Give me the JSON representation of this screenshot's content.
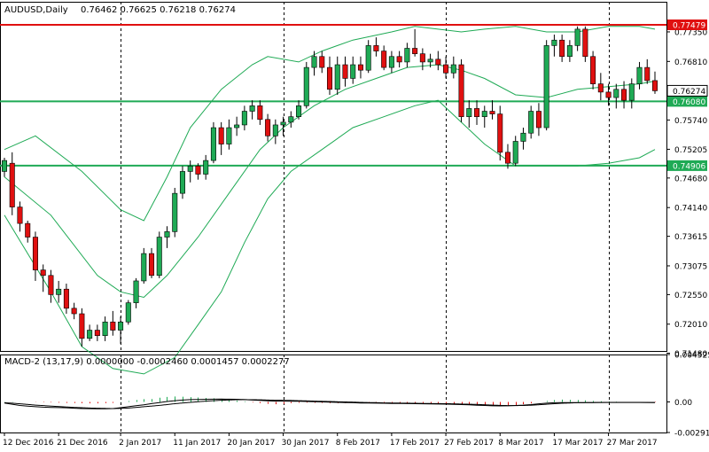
{
  "header": {
    "symbol": "AUDUSD,Daily",
    "ohlc": "0.76462 0.76625 0.76218 0.76274"
  },
  "macd": {
    "label": "MACD-2 (13,17,9) 0.0000000 -0.0002460 0.0001457 0.0002277",
    "axis_ticks": [
      "0.0045259",
      "0.00",
      "-0.0029180"
    ]
  },
  "chart_data": {
    "type": "candlestick",
    "price_axis": {
      "ylim": [
        0.7152,
        0.779
      ],
      "ticks": [
        "0.77350",
        "0.76810",
        "0.76280",
        "0.75740",
        "0.75205",
        "0.74680",
        "0.74140",
        "0.73615",
        "0.73075",
        "0.72550",
        "0.72010",
        "0.71480"
      ],
      "tick_values": [
        0.7735,
        0.7681,
        0.7628,
        0.7574,
        0.75205,
        0.7468,
        0.7414,
        0.73615,
        0.73075,
        0.7255,
        0.7201,
        0.7148
      ]
    },
    "x_labels": [
      {
        "label": "12 Dec 2016",
        "index": 0
      },
      {
        "label": "21 Dec 2016",
        "index": 7
      },
      {
        "label": "2 Jan 2017",
        "index": 15
      },
      {
        "label": "11 Jan 2017",
        "index": 22
      },
      {
        "label": "20 Jan 2017",
        "index": 29
      },
      {
        "label": "30 Jan 2017",
        "index": 36
      },
      {
        "label": "8 Feb 2017",
        "index": 43
      },
      {
        "label": "17 Feb 2017",
        "index": 50
      },
      {
        "label": "27 Feb 2017",
        "index": 57
      },
      {
        "label": "8 Mar 2017",
        "index": 64
      },
      {
        "label": "17 Mar 2017",
        "index": 71
      },
      {
        "label": "27 Mar 2017",
        "index": 78
      }
    ],
    "separators": [
      15,
      36,
      57,
      78
    ],
    "levels": [
      {
        "value": 0.77479,
        "label": "0.77479",
        "color": "#e01010"
      },
      {
        "value": 0.7608,
        "label": "0.76080",
        "color": "#1faa55"
      },
      {
        "value": 0.74906,
        "label": "0.74906",
        "color": "#1faa55"
      }
    ],
    "current_price": {
      "value": 0.76274,
      "label": "0.76274"
    },
    "candles": [
      [
        0.748,
        0.7505,
        0.747,
        0.75
      ],
      [
        0.7495,
        0.7515,
        0.74,
        0.7415
      ],
      [
        0.7415,
        0.7425,
        0.737,
        0.7385
      ],
      [
        0.7385,
        0.739,
        0.735,
        0.736
      ],
      [
        0.736,
        0.737,
        0.728,
        0.73
      ],
      [
        0.73,
        0.731,
        0.726,
        0.729
      ],
      [
        0.729,
        0.73,
        0.724,
        0.7255
      ],
      [
        0.7255,
        0.728,
        0.724,
        0.7265
      ],
      [
        0.7265,
        0.7275,
        0.722,
        0.723
      ],
      [
        0.723,
        0.724,
        0.721,
        0.722
      ],
      [
        0.722,
        0.723,
        0.716,
        0.7175
      ],
      [
        0.7175,
        0.72,
        0.717,
        0.719
      ],
      [
        0.719,
        0.72,
        0.717,
        0.718
      ],
      [
        0.718,
        0.7215,
        0.717,
        0.7205
      ],
      [
        0.7205,
        0.7225,
        0.718,
        0.719
      ],
      [
        0.719,
        0.7215,
        0.7165,
        0.7205
      ],
      [
        0.7205,
        0.7245,
        0.72,
        0.724
      ],
      [
        0.724,
        0.7285,
        0.723,
        0.728
      ],
      [
        0.728,
        0.734,
        0.7275,
        0.733
      ],
      [
        0.733,
        0.734,
        0.7285,
        0.729
      ],
      [
        0.729,
        0.737,
        0.7285,
        0.736
      ],
      [
        0.736,
        0.738,
        0.734,
        0.737
      ],
      [
        0.737,
        0.745,
        0.736,
        0.744
      ],
      [
        0.744,
        0.749,
        0.743,
        0.748
      ],
      [
        0.748,
        0.75,
        0.746,
        0.749
      ],
      [
        0.749,
        0.7495,
        0.7465,
        0.7475
      ],
      [
        0.7475,
        0.751,
        0.7465,
        0.75
      ],
      [
        0.75,
        0.757,
        0.7495,
        0.756
      ],
      [
        0.756,
        0.757,
        0.751,
        0.753
      ],
      [
        0.753,
        0.7575,
        0.752,
        0.756
      ],
      [
        0.756,
        0.758,
        0.7545,
        0.7565
      ],
      [
        0.7565,
        0.76,
        0.7555,
        0.759
      ],
      [
        0.759,
        0.761,
        0.7575,
        0.76
      ],
      [
        0.76,
        0.761,
        0.7565,
        0.7575
      ],
      [
        0.7575,
        0.7585,
        0.7535,
        0.7545
      ],
      [
        0.7545,
        0.7575,
        0.753,
        0.7565
      ],
      [
        0.7565,
        0.758,
        0.7545,
        0.757
      ],
      [
        0.757,
        0.759,
        0.756,
        0.758
      ],
      [
        0.758,
        0.761,
        0.7575,
        0.76
      ],
      [
        0.76,
        0.768,
        0.7595,
        0.767
      ],
      [
        0.767,
        0.77,
        0.7655,
        0.769
      ],
      [
        0.769,
        0.77,
        0.766,
        0.767
      ],
      [
        0.767,
        0.769,
        0.762,
        0.763
      ],
      [
        0.763,
        0.769,
        0.762,
        0.7675
      ],
      [
        0.7675,
        0.769,
        0.7635,
        0.765
      ],
      [
        0.765,
        0.769,
        0.764,
        0.7675
      ],
      [
        0.7675,
        0.769,
        0.765,
        0.7665
      ],
      [
        0.7665,
        0.772,
        0.766,
        0.771
      ],
      [
        0.771,
        0.7725,
        0.769,
        0.77
      ],
      [
        0.77,
        0.771,
        0.7665,
        0.767
      ],
      [
        0.767,
        0.77,
        0.766,
        0.769
      ],
      [
        0.769,
        0.77,
        0.767,
        0.768
      ],
      [
        0.768,
        0.7715,
        0.767,
        0.7705
      ],
      [
        0.7705,
        0.774,
        0.769,
        0.7695
      ],
      [
        0.7695,
        0.7705,
        0.7665,
        0.768
      ],
      [
        0.768,
        0.7695,
        0.767,
        0.7685
      ],
      [
        0.7685,
        0.77,
        0.7665,
        0.7675
      ],
      [
        0.7675,
        0.769,
        0.765,
        0.766
      ],
      [
        0.766,
        0.769,
        0.765,
        0.7675
      ],
      [
        0.7675,
        0.7685,
        0.757,
        0.758
      ],
      [
        0.758,
        0.761,
        0.756,
        0.7595
      ],
      [
        0.7595,
        0.761,
        0.7565,
        0.758
      ],
      [
        0.758,
        0.76,
        0.756,
        0.759
      ],
      [
        0.759,
        0.761,
        0.7575,
        0.7585
      ],
      [
        0.7585,
        0.76,
        0.75,
        0.7515
      ],
      [
        0.7515,
        0.753,
        0.7485,
        0.7495
      ],
      [
        0.7495,
        0.7545,
        0.749,
        0.7535
      ],
      [
        0.7535,
        0.756,
        0.752,
        0.755
      ],
      [
        0.755,
        0.76,
        0.754,
        0.759
      ],
      [
        0.759,
        0.7605,
        0.7545,
        0.756
      ],
      [
        0.756,
        0.772,
        0.7555,
        0.771
      ],
      [
        0.771,
        0.773,
        0.769,
        0.772
      ],
      [
        0.772,
        0.773,
        0.768,
        0.769
      ],
      [
        0.769,
        0.772,
        0.768,
        0.771
      ],
      [
        0.771,
        0.7745,
        0.77,
        0.774
      ],
      [
        0.774,
        0.7745,
        0.768,
        0.769
      ],
      [
        0.769,
        0.77,
        0.763,
        0.764
      ],
      [
        0.764,
        0.766,
        0.761,
        0.7625
      ],
      [
        0.7625,
        0.764,
        0.76,
        0.7615
      ],
      [
        0.7615,
        0.764,
        0.7595,
        0.763
      ],
      [
        0.763,
        0.7645,
        0.7595,
        0.761
      ],
      [
        0.761,
        0.765,
        0.7595,
        0.764
      ],
      [
        0.764,
        0.768,
        0.763,
        0.767
      ],
      [
        0.767,
        0.7685,
        0.764,
        0.7646
      ],
      [
        0.7646,
        0.76625,
        0.76218,
        0.76274
      ]
    ],
    "bollinger": {
      "upper": [
        [
          0,
          0.752
        ],
        [
          4,
          0.7545
        ],
        [
          10,
          0.748
        ],
        [
          15,
          0.741
        ],
        [
          18,
          0.739
        ],
        [
          21,
          0.747
        ],
        [
          24,
          0.756
        ],
        [
          28,
          0.763
        ],
        [
          32,
          0.7675
        ],
        [
          34,
          0.769
        ],
        [
          38,
          0.768
        ],
        [
          41,
          0.77
        ],
        [
          45,
          0.772
        ],
        [
          50,
          0.7735
        ],
        [
          53,
          0.7745
        ],
        [
          56,
          0.774
        ],
        [
          59,
          0.7735
        ],
        [
          62,
          0.774
        ],
        [
          66,
          0.7745
        ],
        [
          70,
          0.7735
        ],
        [
          74,
          0.7735
        ],
        [
          78,
          0.7745
        ],
        [
          82,
          0.7745
        ],
        [
          84,
          0.774
        ]
      ],
      "middle": [
        [
          0,
          0.747
        ],
        [
          6,
          0.74
        ],
        [
          12,
          0.729
        ],
        [
          15,
          0.726
        ],
        [
          18,
          0.725
        ],
        [
          21,
          0.729
        ],
        [
          25,
          0.736
        ],
        [
          29,
          0.744
        ],
        [
          33,
          0.752
        ],
        [
          36,
          0.756
        ],
        [
          40,
          0.76
        ],
        [
          44,
          0.763
        ],
        [
          48,
          0.765
        ],
        [
          52,
          0.767
        ],
        [
          56,
          0.7675
        ],
        [
          59,
          0.7665
        ],
        [
          62,
          0.765
        ],
        [
          66,
          0.762
        ],
        [
          70,
          0.7615
        ],
        [
          74,
          0.763
        ],
        [
          78,
          0.7635
        ],
        [
          82,
          0.764
        ],
        [
          84,
          0.7645
        ]
      ],
      "lower": [
        [
          0,
          0.74
        ],
        [
          6,
          0.726
        ],
        [
          10,
          0.716
        ],
        [
          14,
          0.712
        ],
        [
          18,
          0.711
        ],
        [
          22,
          0.714
        ],
        [
          25,
          0.72
        ],
        [
          28,
          0.726
        ],
        [
          31,
          0.735
        ],
        [
          34,
          0.743
        ],
        [
          37,
          0.748
        ],
        [
          41,
          0.752
        ],
        [
          45,
          0.756
        ],
        [
          49,
          0.758
        ],
        [
          53,
          0.76
        ],
        [
          56,
          0.761
        ],
        [
          59,
          0.757
        ],
        [
          62,
          0.753
        ],
        [
          66,
          0.749
        ],
        [
          70,
          0.749
        ],
        [
          74,
          0.749
        ],
        [
          78,
          0.7495
        ],
        [
          82,
          0.7505
        ],
        [
          84,
          0.752
        ]
      ]
    },
    "macd_histogram": [
      2e-05,
      2e-05,
      1e-05,
      0.0,
      -2e-05,
      -4e-05,
      -5e-05,
      -7e-05,
      -9e-05,
      -0.00011,
      -0.00013,
      -0.00014,
      -0.00014,
      -0.00012,
      -0.0001,
      2e-05,
      8e-05,
      0.00018,
      0.00026,
      0.00028,
      0.0004,
      0.00048,
      0.00052,
      0.0005,
      0.00045,
      0.00042,
      0.00038,
      0.00035,
      0.0003,
      0.0002,
      0.00012,
      5e-05,
      -5e-05,
      -0.00012,
      -0.00018,
      -0.00022,
      -0.00018,
      -0.00012,
      -8e-05,
      -6e-05,
      -8e-05,
      -0.0001,
      -0.00012,
      -0.00013,
      -0.00012,
      -0.0001,
      -8e-05,
      -6e-05,
      -7e-05,
      -8e-05,
      -0.0001,
      -0.00012,
      -0.00014,
      -0.00015,
      -0.00017,
      -0.00018,
      -0.0002,
      -0.00022,
      -0.00025,
      -0.00028,
      -0.0003,
      -0.00032,
      -0.00034,
      -0.00035,
      -0.00036,
      -0.00034,
      -0.0003,
      -0.00022,
      -0.00014,
      0.0,
      0.0001,
      0.00018,
      0.00022,
      0.0002,
      0.00018,
      0.00015,
      0.0001,
      6e-05,
      4e-05,
      2e-05,
      0.0,
      -2e-05,
      -1e-05,
      -3e-05,
      -4e-05
    ],
    "macd_line": [
      -0.0001,
      -0.00022,
      -0.00034,
      -0.0004,
      -0.00046,
      -0.0005,
      -0.00052,
      -0.00054,
      -0.00056,
      -0.0006,
      -0.00063,
      -0.00064,
      -0.00066,
      -0.00065,
      -0.00063,
      -0.00055,
      -0.00046,
      -0.00036,
      -0.00028,
      -0.00016,
      -6e-05,
      4e-05,
      0.00012,
      0.00018,
      0.00022,
      0.00024,
      0.00025,
      0.00026,
      0.00027,
      0.00026,
      0.00025,
      0.00022,
      0.00018,
      0.00014,
      0.00011,
      8e-05,
      8e-05,
      7e-05,
      6e-05,
      4e-05,
      2e-05,
      0.0,
      -2e-05,
      -4e-05,
      -6e-05,
      -8e-05,
      -0.0001,
      -0.00011,
      -0.00012,
      -0.00013,
      -0.00014,
      -0.00015,
      -0.00016,
      -0.00017,
      -0.00018,
      -0.00019,
      -0.0002,
      -0.00021,
      -0.00023,
      -0.00025,
      -0.00028,
      -0.00031,
      -0.00034,
      -0.00037,
      -0.00038,
      -0.00037,
      -0.00034,
      -0.0003,
      -0.00025,
      -0.00018,
      -0.00012,
      -8e-05,
      -6e-05,
      -6e-05,
      -6e-05,
      -6e-05,
      -6e-05,
      -5e-05,
      -4e-05,
      -4e-05,
      -4e-05,
      -4e-05,
      -4e-05,
      -5e-05,
      -6e-05
    ],
    "signal_line": [
      -8e-05,
      -0.00012,
      -0.00018,
      -0.00024,
      -0.0003,
      -0.00035,
      -0.0004,
      -0.00044,
      -0.00048,
      -0.00052,
      -0.00055,
      -0.00058,
      -0.0006,
      -0.00062,
      -0.00063,
      -0.00062,
      -0.00058,
      -0.00052,
      -0.00046,
      -0.0004,
      -0.00033,
      -0.00025,
      -0.00017,
      -0.0001,
      -4e-05,
      2e-05,
      8e-05,
      0.00012,
      0.00016,
      0.00019,
      0.00021,
      0.00022,
      0.00021,
      0.0002,
      0.00018,
      0.00016,
      0.00015,
      0.00014,
      0.00012,
      0.0001,
      8e-05,
      6e-05,
      4e-05,
      2e-05,
      0.0,
      -2e-05,
      -4e-05,
      -6e-05,
      -7e-05,
      -9e-05,
      -0.0001,
      -0.00011,
      -0.00012,
      -0.00013,
      -0.00014,
      -0.00015,
      -0.00016,
      -0.00017,
      -0.00018,
      -0.0002,
      -0.00022,
      -0.00024,
      -0.00027,
      -0.0003,
      -0.00033,
      -0.00035,
      -0.00035,
      -0.00034,
      -0.00031,
      -0.00027,
      -0.00022,
      -0.00017,
      -0.00013,
      -0.0001,
      -8e-05,
      -7e-05,
      -6e-05,
      -5e-05,
      -5e-05,
      -5e-05,
      -5e-05,
      -5e-05,
      -5e-05,
      -5e-05,
      -5e-05
    ],
    "colors": {
      "bull": "#1faa55",
      "bear": "#e01010",
      "wick": "#000000",
      "bands": "#1faa55",
      "macd_up": "#1faa55",
      "macd_down": "#e01010"
    }
  }
}
